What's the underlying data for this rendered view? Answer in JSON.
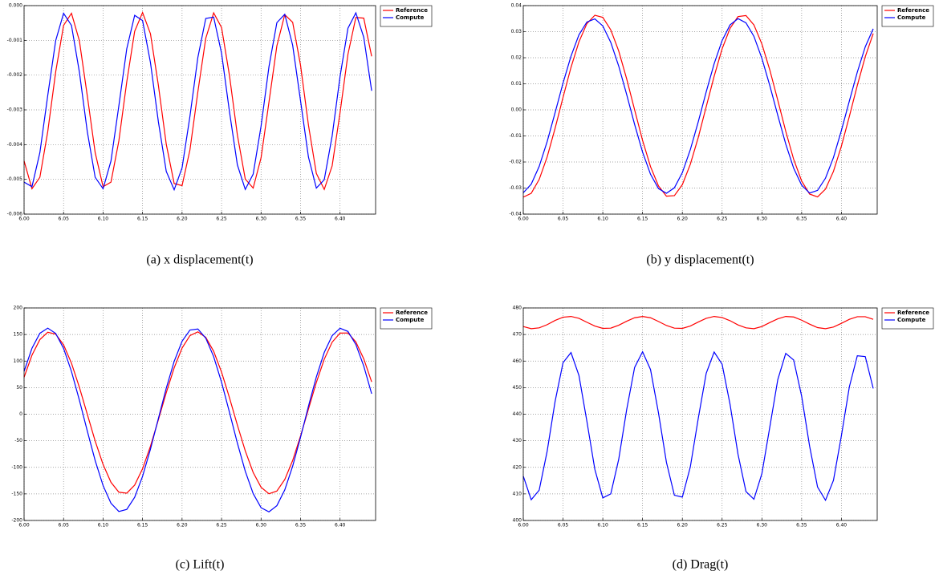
{
  "chart_data": [
    {
      "type": "line",
      "caption": "(a) x displacement(t)",
      "x": [
        6,
        6.01,
        6.02,
        6.03,
        6.04,
        6.05,
        6.06,
        6.07,
        6.08,
        6.09,
        6.1,
        6.11,
        6.12,
        6.13,
        6.14,
        6.15,
        6.16,
        6.17,
        6.18,
        6.19,
        6.2,
        6.21,
        6.22,
        6.23,
        6.24,
        6.25,
        6.26,
        6.27,
        6.28,
        6.29,
        6.3,
        6.31,
        6.32,
        6.33,
        6.34,
        6.35,
        6.36,
        6.37,
        6.38,
        6.39,
        6.4,
        6.41,
        6.42,
        6.43,
        6.44
      ],
      "series": [
        {
          "name": "Reference",
          "color": "#ff0000",
          "values": [
            -0.00447,
            -0.00527,
            -0.00494,
            -0.00362,
            -0.00191,
            -0.00057,
            -0.00022,
            -0.00101,
            -0.00259,
            -0.00423,
            -0.00521,
            -0.00508,
            -0.00389,
            -0.00219,
            -0.00074,
            -0.0002,
            -0.00081,
            -0.00229,
            -0.00399,
            -0.00512,
            -0.00518,
            -0.00415,
            -0.00248,
            -0.00094,
            -0.00021,
            -0.00063,
            -0.00201,
            -0.00372,
            -0.00499,
            -0.00525,
            -0.00438,
            -0.00278,
            -0.00116,
            -0.00026,
            -0.00048,
            -0.00172,
            -0.00344,
            -0.00483,
            -0.00529,
            -0.00461,
            -0.00308,
            -0.0014,
            -0.00034,
            -0.00036,
            -0.00146
          ]
        },
        {
          "name": "Compute",
          "color": "#0000ff",
          "values": [
            -0.00508,
            -0.00521,
            -0.00423,
            -0.00258,
            -0.00101,
            -0.00022,
            -0.00057,
            -0.00191,
            -0.00362,
            -0.00494,
            -0.00527,
            -0.00447,
            -0.00288,
            -0.00124,
            -0.00028,
            -0.00043,
            -0.00164,
            -0.00334,
            -0.00477,
            -0.0053,
            -0.00467,
            -0.00318,
            -0.00149,
            -0.00037,
            -0.00033,
            -0.00137,
            -0.00305,
            -0.00458,
            -0.00529,
            -0.00485,
            -0.00347,
            -0.00176,
            -0.00049,
            -0.00025,
            -0.00114,
            -0.00274,
            -0.00436,
            -0.00525,
            -0.00501,
            -0.00375,
            -0.00204,
            -0.00065,
            -0.00021,
            -0.00091,
            -0.00245
          ]
        }
      ],
      "xlim": [
        6,
        6.445
      ],
      "ylim": [
        -0.006,
        0
      ],
      "xticks": [
        {
          "value": 6,
          "label": "6.00"
        },
        6.05,
        {
          "value": 6.1,
          "label": "6.10"
        },
        6.15,
        {
          "value": 6.2,
          "label": "6.20"
        },
        6.25,
        {
          "value": 6.3,
          "label": "6.30"
        },
        6.35,
        {
          "value": 6.4,
          "label": "6.40"
        }
      ],
      "yticks": [
        {
          "value": 0,
          "label": "0.000"
        },
        -0.001,
        -0.002,
        -0.003,
        -0.004,
        -0.005,
        -0.006
      ],
      "grid": true,
      "legend": "upper right"
    },
    {
      "type": "line",
      "caption": "(b) y displacement(t)",
      "x": [
        6,
        6.01,
        6.02,
        6.03,
        6.04,
        6.05,
        6.06,
        6.07,
        6.08,
        6.09,
        6.1,
        6.11,
        6.12,
        6.13,
        6.14,
        6.15,
        6.16,
        6.17,
        6.18,
        6.19,
        6.2,
        6.21,
        6.22,
        6.23,
        6.24,
        6.25,
        6.26,
        6.27,
        6.28,
        6.29,
        6.3,
        6.31,
        6.32,
        6.33,
        6.34,
        6.35,
        6.36,
        6.37,
        6.38,
        6.39,
        6.4,
        6.41,
        6.42,
        6.43,
        6.44
      ],
      "series": [
        {
          "name": "Reference",
          "color": "#ff0000",
          "values": [
            -0.0335,
            -0.032,
            -0.0267,
            -0.0181,
            -0.0071,
            0.0048,
            0.0163,
            0.0261,
            0.0331,
            0.0363,
            0.0355,
            0.0307,
            0.0226,
            0.0119,
            0,
            -0.0117,
            -0.0218,
            -0.0292,
            -0.0331,
            -0.0329,
            -0.0287,
            -0.0209,
            -0.0106,
            0.0012,
            0.0129,
            0.0234,
            0.0313,
            0.0358,
            0.0362,
            0.0326,
            0.0253,
            0.0153,
            0.0037,
            -0.0082,
            -0.019,
            -0.0273,
            -0.0323,
            -0.0334,
            -0.0304,
            -0.0236,
            -0.0139,
            -0.0025,
            0.0094,
            0.0204,
            0.0293
          ]
        },
        {
          "name": "Compute",
          "color": "#0000ff",
          "values": [
            -0.0318,
            -0.0285,
            -0.0217,
            -0.0122,
            -0.0011,
            0.0103,
            0.0206,
            0.0288,
            0.0337,
            0.0349,
            0.0322,
            0.0259,
            0.0168,
            0.0059,
            -0.0056,
            -0.0162,
            -0.0247,
            -0.0302,
            -0.032,
            -0.0299,
            -0.0241,
            -0.0153,
            -0.0046,
            0.0069,
            0.0177,
            0.0266,
            0.0326,
            0.035,
            0.0334,
            0.0282,
            0.0198,
            0.0093,
            -0.0021,
            -0.0131,
            -0.0224,
            -0.0289,
            -0.0319,
            -0.0309,
            -0.0262,
            -0.0183,
            -0.0079,
            0.0034,
            0.0145,
            0.0242,
            0.0311
          ]
        }
      ],
      "xlim": [
        6,
        6.445
      ],
      "ylim": [
        -0.04,
        0.04
      ],
      "xticks": [
        {
          "value": 6,
          "label": "6.00"
        },
        6.05,
        {
          "value": 6.1,
          "label": "6.10"
        },
        6.15,
        {
          "value": 6.2,
          "label": "6.20"
        },
        6.25,
        {
          "value": 6.3,
          "label": "6.30"
        },
        6.35,
        {
          "value": 6.4,
          "label": "6.40"
        }
      ],
      "yticks": [
        0.04,
        0.03,
        0.02,
        0.01,
        {
          "value": 0,
          "label": "0.00"
        },
        -0.01,
        -0.02,
        -0.03,
        -0.04
      ],
      "grid": true,
      "legend": "upper right"
    },
    {
      "type": "line",
      "caption": "(c) Lift(t)",
      "x": [
        6,
        6.01,
        6.02,
        6.03,
        6.04,
        6.05,
        6.06,
        6.07,
        6.08,
        6.09,
        6.1,
        6.11,
        6.12,
        6.13,
        6.14,
        6.15,
        6.16,
        6.17,
        6.18,
        6.19,
        6.2,
        6.21,
        6.22,
        6.23,
        6.24,
        6.25,
        6.26,
        6.27,
        6.28,
        6.29,
        6.3,
        6.31,
        6.32,
        6.33,
        6.34,
        6.35,
        6.36,
        6.37,
        6.38,
        6.39,
        6.4,
        6.41,
        6.42,
        6.43,
        6.44
      ],
      "series": [
        {
          "name": "Reference",
          "color": "#ff0000",
          "values": [
            69.6,
            111.1,
            140.5,
            154.2,
            150.7,
            130.6,
            96,
            50.7,
            0.1,
            -50.4,
            -94.6,
            -128.2,
            -146.8,
            -148.6,
            -133.4,
            -102.7,
            -60.3,
            -10.5,
            40.5,
            87.3,
            124.5,
            148,
            155,
            144.6,
            118.4,
            79.1,
            31,
            -20.4,
            -68.9,
            -109.6,
            -137.5,
            -149.7,
            -144.7,
            -122.9,
            -87.2,
            -41.1,
            9.7,
            59.8,
            103.5,
            135.6,
            152.7,
            152.9,
            136.1,
            104.2,
            60.9
          ]
        },
        {
          "name": "Compute",
          "color": "#0000ff",
          "values": [
            80.7,
            124.1,
            152.3,
            162,
            152.1,
            123.9,
            80.4,
            26.5,
            -31.4,
            -87.3,
            -134.3,
            -167.6,
            -183.1,
            -179.2,
            -156.3,
            -116.9,
            -65.7,
            -8.1,
            49,
            99.4,
            137.3,
            158.4,
            160.4,
            143.1,
            108.4,
            60.1,
            3.7,
            -54.3,
            -107.2,
            -149.4,
            -176,
            -183.8,
            -172.2,
            -142.5,
            -97.8,
            -43.4,
            15,
            70.1,
            116.2,
            147.8,
            161.7,
            155.8,
            131.2,
            90.6,
            38.5
          ]
        }
      ],
      "xlim": [
        6,
        6.445
      ],
      "ylim": [
        -200,
        200
      ],
      "xticks": [
        {
          "value": 6,
          "label": "6.00"
        },
        6.05,
        {
          "value": 6.1,
          "label": "6.10"
        },
        6.15,
        {
          "value": 6.2,
          "label": "6.20"
        },
        6.25,
        {
          "value": 6.3,
          "label": "6.30"
        },
        6.35,
        {
          "value": 6.4,
          "label": "6.40"
        }
      ],
      "yticks": [
        200,
        150,
        100,
        50,
        0,
        -50,
        -100,
        -150,
        -200
      ],
      "grid": true,
      "legend": "upper right"
    },
    {
      "type": "line",
      "caption": "(d) Drag(t)",
      "x": [
        6,
        6.01,
        6.02,
        6.03,
        6.04,
        6.05,
        6.06,
        6.07,
        6.08,
        6.09,
        6.1,
        6.11,
        6.12,
        6.13,
        6.14,
        6.15,
        6.16,
        6.17,
        6.18,
        6.19,
        6.2,
        6.21,
        6.22,
        6.23,
        6.24,
        6.25,
        6.26,
        6.27,
        6.28,
        6.29,
        6.3,
        6.31,
        6.32,
        6.33,
        6.34,
        6.35,
        6.36,
        6.37,
        6.38,
        6.39,
        6.4,
        6.41,
        6.42,
        6.43,
        6.44
      ],
      "series": [
        {
          "name": "Reference",
          "color": "#ff0000",
          "values": [
            473,
            472.2,
            472.5,
            473.7,
            475.3,
            476.5,
            476.8,
            476.1,
            474.6,
            473.2,
            472.3,
            472.4,
            473.5,
            475,
            476.3,
            476.8,
            476.3,
            474.9,
            473.4,
            472.4,
            472.3,
            473.2,
            474.7,
            476.1,
            476.8,
            476.4,
            475.2,
            473.6,
            472.5,
            472.2,
            473,
            474.5,
            475.9,
            476.8,
            476.6,
            475.4,
            473.9,
            472.6,
            472.2,
            472.8,
            474.2,
            475.7,
            476.7,
            476.7,
            475.7
          ]
        },
        {
          "name": "Compute",
          "color": "#0000ff",
          "values": [
            416.7,
            407.8,
            411.4,
            426,
            444.8,
            459.4,
            463.2,
            454.6,
            437.3,
            419.2,
            408.5,
            410,
            423,
            441.7,
            457.6,
            463.5,
            456.8,
            440.5,
            421.9,
            409.5,
            408.8,
            420.1,
            438.4,
            455.4,
            463.4,
            458.8,
            443.7,
            424.9,
            410.9,
            408,
            417.6,
            435.2,
            453,
            462.9,
            460.4,
            446.8,
            428,
            412.6,
            407.6,
            415.1,
            431.9,
            450.3,
            462,
            461.7,
            449.7
          ]
        }
      ],
      "xlim": [
        6,
        6.445
      ],
      "ylim": [
        400,
        480
      ],
      "xticks": [
        {
          "value": 6,
          "label": "6.00"
        },
        6.05,
        {
          "value": 6.1,
          "label": "6.10"
        },
        6.15,
        {
          "value": 6.2,
          "label": "6.20"
        },
        6.25,
        {
          "value": 6.3,
          "label": "6.30"
        },
        6.35,
        {
          "value": 6.4,
          "label": "6.40"
        }
      ],
      "yticks": [
        480,
        470,
        460,
        450,
        440,
        430,
        420,
        410,
        400
      ],
      "grid": true,
      "legend": "upper right"
    }
  ]
}
